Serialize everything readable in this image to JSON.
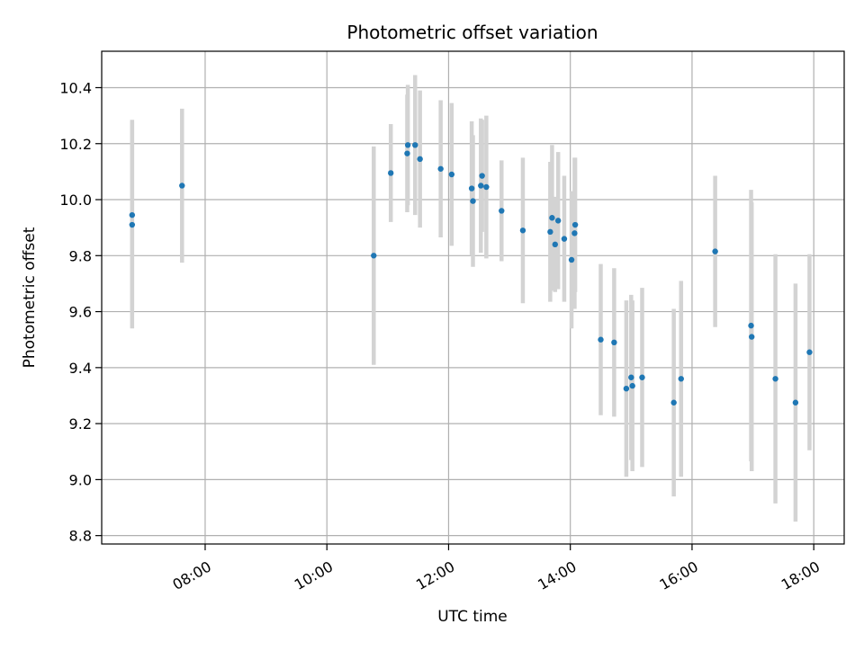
{
  "chart_data": {
    "type": "scatter",
    "title": "Photometric offset variation",
    "xlabel": "UTC time",
    "ylabel": "Photometric offset",
    "x_unit": "UTC hour of day",
    "xlim": [
      6.3,
      18.5
    ],
    "ylim": [
      8.77,
      10.53
    ],
    "x_ticks": [
      {
        "value": 8,
        "label": "08:00"
      },
      {
        "value": 10,
        "label": "10:00"
      },
      {
        "value": 12,
        "label": "12:00"
      },
      {
        "value": 14,
        "label": "14:00"
      },
      {
        "value": 16,
        "label": "16:00"
      },
      {
        "value": 18,
        "label": "18:00"
      }
    ],
    "y_ticks": [
      {
        "value": 8.8,
        "label": "8.8"
      },
      {
        "value": 9.0,
        "label": "9.0"
      },
      {
        "value": 9.2,
        "label": "9.2"
      },
      {
        "value": 9.4,
        "label": "9.4"
      },
      {
        "value": 9.6,
        "label": "9.6"
      },
      {
        "value": 9.8,
        "label": "9.8"
      },
      {
        "value": 10.0,
        "label": "10.0"
      },
      {
        "value": 10.2,
        "label": "10.2"
      },
      {
        "value": 10.4,
        "label": "10.4"
      }
    ],
    "grid": true,
    "colors": {
      "point": "#1f77b4",
      "errorbar": "#d3d3d3",
      "grid": "#b0b0b0"
    },
    "series": [
      {
        "points": [
          {
            "x": 6.8,
            "y": 9.945,
            "err": 0.34
          },
          {
            "x": 6.8,
            "y": 9.91,
            "err": 0.37
          },
          {
            "x": 7.62,
            "y": 10.05,
            "err": 0.275
          },
          {
            "x": 10.77,
            "y": 9.8,
            "err": 0.39
          },
          {
            "x": 11.05,
            "y": 10.095,
            "err": 0.175
          },
          {
            "x": 11.32,
            "y": 10.165,
            "err": 0.21
          },
          {
            "x": 11.33,
            "y": 10.195,
            "err": 0.215
          },
          {
            "x": 11.45,
            "y": 10.195,
            "err": 0.25
          },
          {
            "x": 11.53,
            "y": 10.145,
            "err": 0.245
          },
          {
            "x": 11.87,
            "y": 10.11,
            "err": 0.245
          },
          {
            "x": 12.05,
            "y": 10.09,
            "err": 0.255
          },
          {
            "x": 12.38,
            "y": 10.04,
            "err": 0.24
          },
          {
            "x": 12.4,
            "y": 9.995,
            "err": 0.235
          },
          {
            "x": 12.53,
            "y": 10.05,
            "err": 0.24
          },
          {
            "x": 12.55,
            "y": 10.085,
            "err": 0.2
          },
          {
            "x": 12.62,
            "y": 10.045,
            "err": 0.255
          },
          {
            "x": 12.87,
            "y": 9.96,
            "err": 0.18
          },
          {
            "x": 13.22,
            "y": 9.89,
            "err": 0.26
          },
          {
            "x": 13.67,
            "y": 9.885,
            "err": 0.25
          },
          {
            "x": 13.7,
            "y": 9.935,
            "err": 0.26
          },
          {
            "x": 13.75,
            "y": 9.84,
            "err": 0.17
          },
          {
            "x": 13.8,
            "y": 9.925,
            "err": 0.245
          },
          {
            "x": 13.9,
            "y": 9.86,
            "err": 0.225
          },
          {
            "x": 14.02,
            "y": 9.785,
            "err": 0.245
          },
          {
            "x": 14.07,
            "y": 9.88,
            "err": 0.27
          },
          {
            "x": 14.08,
            "y": 9.91,
            "err": 0.24
          },
          {
            "x": 14.5,
            "y": 9.5,
            "err": 0.27
          },
          {
            "x": 14.72,
            "y": 9.49,
            "err": 0.265
          },
          {
            "x": 14.92,
            "y": 9.325,
            "err": 0.315
          },
          {
            "x": 15.0,
            "y": 9.365,
            "err": 0.295
          },
          {
            "x": 15.02,
            "y": 9.335,
            "err": 0.305
          },
          {
            "x": 15.18,
            "y": 9.365,
            "err": 0.32
          },
          {
            "x": 15.7,
            "y": 9.275,
            "err": 0.335
          },
          {
            "x": 15.82,
            "y": 9.36,
            "err": 0.35
          },
          {
            "x": 16.38,
            "y": 9.815,
            "err": 0.27
          },
          {
            "x": 16.97,
            "y": 9.55,
            "err": 0.485
          },
          {
            "x": 16.98,
            "y": 9.51,
            "err": 0.48
          },
          {
            "x": 17.37,
            "y": 9.36,
            "err": 0.445
          },
          {
            "x": 17.7,
            "y": 9.275,
            "err": 0.425
          },
          {
            "x": 17.93,
            "y": 9.455,
            "err": 0.35
          }
        ]
      }
    ]
  }
}
